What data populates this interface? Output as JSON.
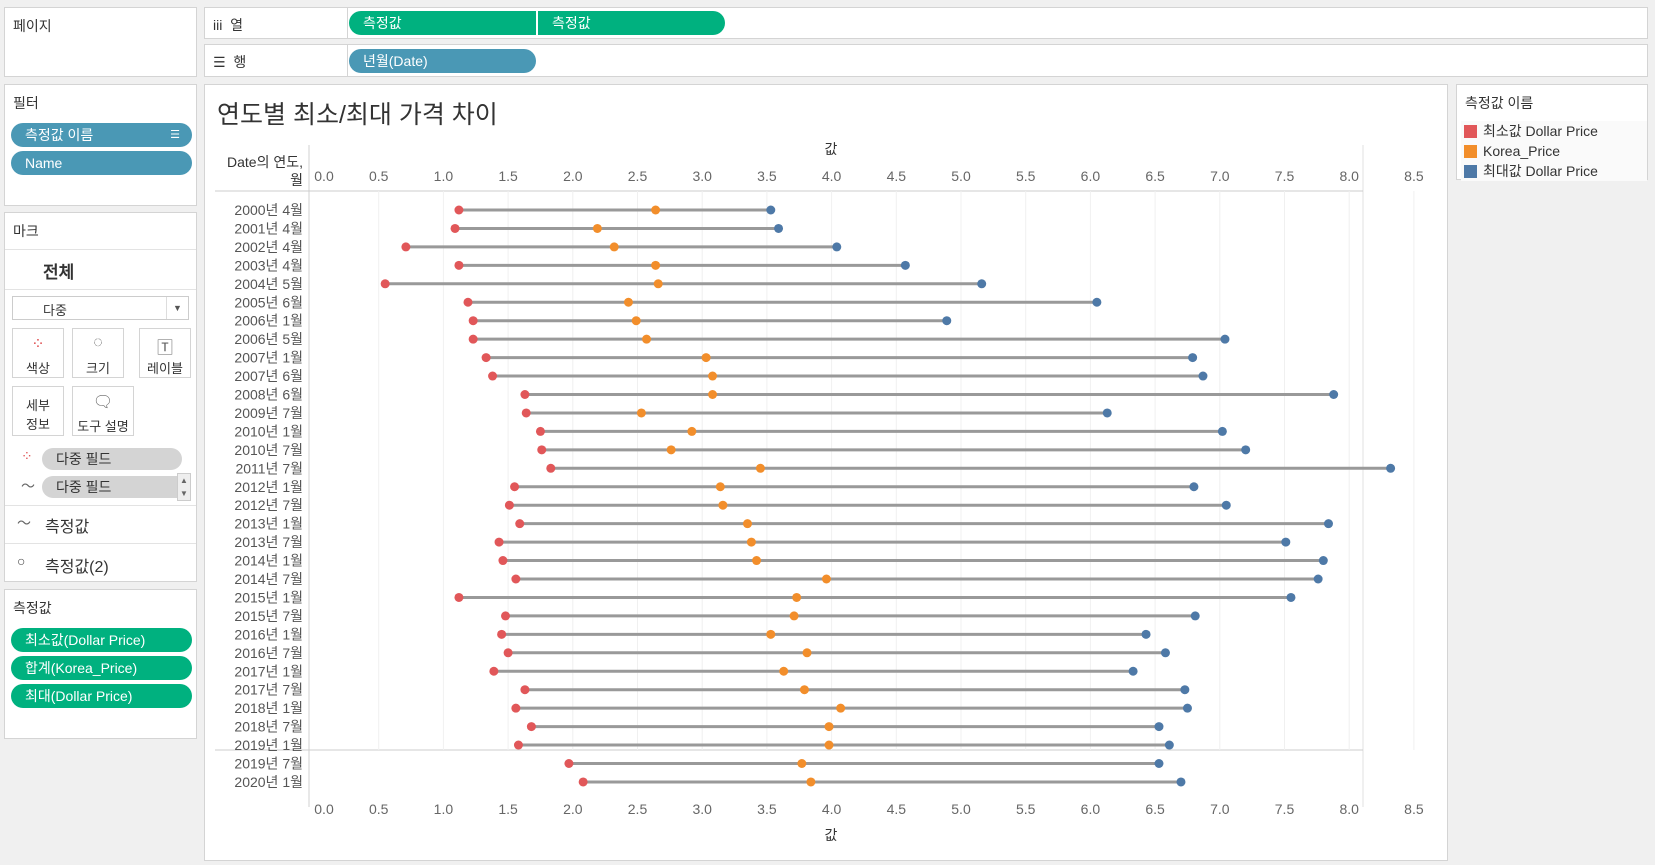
{
  "pages": {
    "title": "페이지"
  },
  "shelves": {
    "columns_label": "열",
    "columns_icon": "iii",
    "columns_pills": [
      "측정값",
      "측정값"
    ],
    "rows_label": "행",
    "rows_icon": "☰",
    "rows_pills": [
      "년월(Date)"
    ]
  },
  "filters": {
    "title": "필터",
    "pills": [
      "측정값 이름",
      "Name"
    ]
  },
  "marks": {
    "title": "마크",
    "all": "전체",
    "type": "다중",
    "cards": [
      "색상",
      "크기",
      "레이블",
      "세부 정보",
      "도구 설명"
    ],
    "fields": [
      "다중 필드",
      "다중 필드"
    ],
    "measures": [
      "측정값",
      "측정값(2)"
    ]
  },
  "measure_values": {
    "title": "측정값",
    "pills": [
      "최소값(Dollar Price)",
      "합계(Korea_Price)",
      "최대(Dollar Price)"
    ]
  },
  "legend": {
    "title": "측정값 이름",
    "items": [
      {
        "label": "최소값 Dollar Price",
        "color": "#e15759"
      },
      {
        "label": "Korea_Price",
        "color": "#f28e2b"
      },
      {
        "label": "최대값 Dollar Price",
        "color": "#4e79a7"
      }
    ]
  },
  "chart_data": {
    "type": "dumbbell",
    "title": "연도별 최소/최대 가격 차이",
    "row_header": "Date의 연도,",
    "row_header2": "월",
    "xlabel": "값",
    "xlim": [
      0,
      8.75
    ],
    "ticks": [
      "0.0",
      "0.5",
      "1.0",
      "1.5",
      "2.0",
      "2.5",
      "3.0",
      "3.5",
      "4.0",
      "4.5",
      "5.0",
      "5.5",
      "6.0",
      "6.5",
      "7.0",
      "7.5",
      "8.0",
      "8.5"
    ],
    "categories": [
      "2000년 4월",
      "2001년 4월",
      "2002년 4월",
      "2003년 4월",
      "2004년 5월",
      "2005년 6월",
      "2006년 1월",
      "2006년 5월",
      "2007년 1월",
      "2007년 6월",
      "2008년 6월",
      "2009년 7월",
      "2010년 1월",
      "2010년 7월",
      "2011년 7월",
      "2012년 1월",
      "2012년 7월",
      "2013년 1월",
      "2013년 7월",
      "2014년 1월",
      "2014년 7월",
      "2015년 1월",
      "2015년 7월",
      "2016년 1월",
      "2016년 7월",
      "2017년 1월",
      "2017년 7월",
      "2018년 1월",
      "2018년 7월",
      "2019년 1월",
      "2019년 7월",
      "2020년 1월"
    ],
    "series": [
      {
        "name": "최소값 Dollar Price",
        "color": "#e15759",
        "values": [
          1.12,
          1.09,
          0.71,
          1.12,
          0.55,
          1.19,
          1.23,
          1.23,
          1.33,
          1.38,
          1.63,
          1.64,
          1.75,
          1.76,
          1.83,
          1.55,
          1.51,
          1.59,
          1.43,
          1.46,
          1.56,
          1.12,
          1.48,
          1.45,
          1.5,
          1.39,
          1.63,
          1.56,
          1.68,
          1.58,
          1.97,
          2.08
        ]
      },
      {
        "name": "Korea_Price",
        "color": "#f28e2b",
        "values": [
          2.64,
          2.19,
          2.32,
          2.64,
          2.66,
          2.43,
          2.49,
          2.57,
          3.03,
          3.08,
          3.08,
          2.53,
          2.92,
          2.76,
          3.45,
          3.14,
          3.16,
          3.35,
          3.38,
          3.42,
          3.96,
          3.73,
          3.71,
          3.53,
          3.81,
          3.63,
          3.79,
          4.07,
          3.98,
          3.98,
          3.77,
          3.84
        ]
      },
      {
        "name": "최대값 Dollar Price",
        "color": "#4e79a7",
        "values": [
          3.53,
          3.59,
          4.04,
          4.57,
          5.16,
          6.05,
          4.89,
          7.04,
          6.79,
          6.87,
          7.88,
          6.13,
          7.02,
          7.2,
          8.32,
          6.8,
          7.05,
          7.84,
          7.51,
          7.8,
          7.76,
          7.55,
          6.81,
          6.43,
          6.58,
          6.33,
          6.73,
          6.75,
          6.53,
          6.61,
          6.53,
          6.7
        ]
      }
    ]
  }
}
